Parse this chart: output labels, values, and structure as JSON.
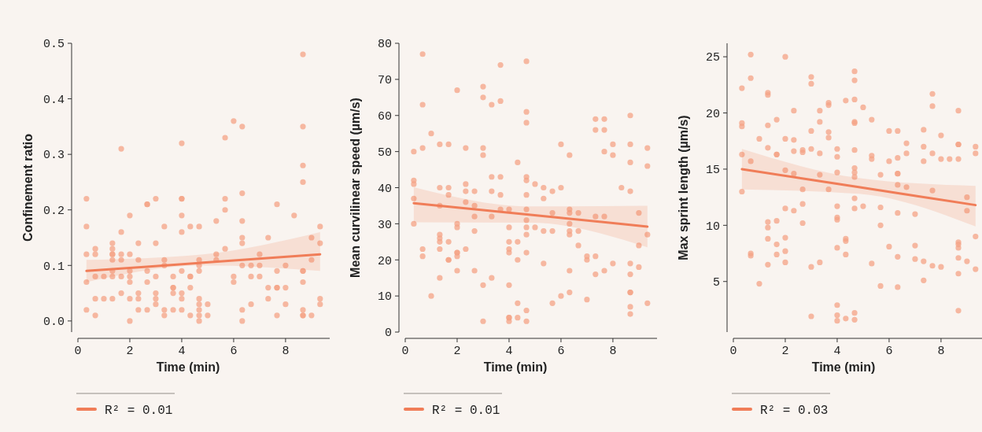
{
  "chart_data": [
    {
      "type": "scatter",
      "xlabel": "Time (min)",
      "ylabel": "Confinement ratio",
      "xlim": [
        0,
        9.7
      ],
      "ylim": [
        -0.02,
        0.5
      ],
      "xticks": [
        0,
        2,
        4,
        6,
        8
      ],
      "yticks": [
        {
          "value": 0,
          "label": "0.0"
        },
        0.1,
        0.2,
        0.3,
        0.4,
        0.5
      ],
      "marker": "circle",
      "legend": "bottom",
      "series": [
        {
          "type": "scatter",
          "color": "#f4a385",
          "x": [
            0.33,
            0.33,
            0.33,
            0.33,
            0.33,
            0.67,
            0.67,
            0.67,
            0.67,
            0.67,
            1,
            1,
            1.33,
            1.33,
            1.33,
            1.33,
            1.33,
            1.33,
            1.33,
            1.33,
            1.67,
            1.67,
            1.67,
            1.67,
            1.67,
            1.67,
            2,
            2,
            2,
            2,
            2,
            2,
            2,
            2.33,
            2.33,
            2.33,
            2.33,
            2.33,
            2.67,
            2.67,
            2.67,
            2.67,
            2.67,
            3,
            3,
            3,
            3,
            3,
            3,
            3.33,
            3.33,
            3.33,
            3.33,
            3.33,
            3.67,
            3.67,
            3.67,
            3.67,
            3.67,
            4,
            4,
            4,
            4,
            4,
            4,
            4,
            4,
            4,
            4.33,
            4.33,
            4.33,
            4.33,
            4.33,
            4.67,
            4.67,
            4.67,
            4.67,
            4.67,
            4.67,
            4.67,
            4.67,
            4.67,
            5,
            5,
            5.33,
            5.33,
            5.33,
            5.67,
            5.67,
            5.67,
            5.67,
            6,
            6,
            6,
            6.33,
            6.33,
            6.33,
            6.33,
            6.33,
            6.33,
            6.33,
            6.33,
            6.67,
            6.67,
            6.67,
            7,
            7,
            7,
            7.33,
            7.33,
            7.33,
            7.67,
            7.67,
            7.67,
            7.67,
            7.67,
            8,
            8,
            8,
            8.33,
            8.67,
            8.67,
            8.67,
            8.67,
            8.67,
            8.67,
            8.67,
            8.67,
            8.67,
            8.67,
            9,
            9,
            9,
            9.33,
            9.33,
            9.33,
            9.33
          ],
          "values": [
            0.22,
            0.17,
            0.12,
            0.07,
            0.02,
            0.13,
            0.12,
            0.08,
            0.04,
            0.01,
            0.08,
            0.04,
            0.14,
            0.13,
            0.12,
            0.12,
            0.11,
            0.09,
            0.08,
            0.04,
            0.31,
            0.16,
            0.12,
            0.11,
            0.08,
            0.05,
            0.19,
            0.12,
            0.09,
            0.08,
            0.07,
            0.04,
            0.0,
            0.14,
            0.11,
            0.05,
            0.04,
            0.02,
            0.21,
            0.21,
            0.09,
            0.07,
            0.02,
            0.22,
            0.14,
            0.08,
            0.05,
            0.04,
            0.03,
            0.17,
            0.11,
            0.1,
            0.02,
            0.01,
            0.08,
            0.06,
            0.06,
            0.05,
            0.02,
            0.32,
            0.22,
            0.22,
            0.19,
            0.16,
            0.09,
            0.05,
            0.04,
            0.02,
            0.17,
            0.08,
            0.08,
            0.06,
            0.01,
            0.17,
            0.11,
            0.1,
            0.09,
            0.04,
            0.03,
            0.02,
            0.01,
            0.0,
            0.03,
            0.01,
            0.18,
            0.12,
            0.11,
            0.33,
            0.22,
            0.2,
            0.13,
            0.36,
            0.08,
            0.07,
            0.35,
            0.23,
            0.18,
            0.15,
            0.14,
            0.1,
            0.02,
            0.0,
            0.1,
            0.08,
            0.03,
            0.12,
            0.1,
            0.08,
            0.15,
            0.06,
            0.04,
            0.21,
            0.09,
            0.06,
            0.06,
            0.01,
            0.1,
            0.06,
            0.03,
            0.19,
            0.48,
            0.35,
            0.28,
            0.25,
            0.09,
            0.09,
            0.07,
            0.02,
            0.01,
            0.01,
            0.15,
            0.11,
            0.01,
            0.17,
            0.14,
            0.04,
            0.03
          ]
        },
        {
          "type": "line",
          "name": "R² = 0.01",
          "color": "#f07d58",
          "x": [
            0.33,
            4.83,
            9.33
          ],
          "marker": "none",
          "values": [
            0.09,
            0.105,
            0.12
          ],
          "lower": [
            0.07,
            0.1,
            0.09
          ],
          "upper": [
            0.11,
            0.12,
            0.16
          ]
        }
      ]
    },
    {
      "type": "scatter",
      "xlabel": "Time (min)",
      "ylabel": "Mean curvilinear speed (µm/s)",
      "xlim": [
        0,
        9.7
      ],
      "ylim": [
        0,
        80
      ],
      "xticks": [
        0,
        2,
        4,
        6,
        8
      ],
      "yticks": [
        0,
        10,
        20,
        30,
        40,
        50,
        60,
        70,
        80
      ],
      "marker": "circle",
      "legend": "bottom",
      "series": [
        {
          "type": "scatter",
          "color": "#f4a385",
          "x": [
            0.33,
            0.33,
            0.33,
            0.33,
            0.33,
            0.67,
            0.67,
            0.67,
            0.67,
            0.67,
            1,
            1,
            1.33,
            1.33,
            1.33,
            1.33,
            1.33,
            1.33,
            1.33,
            1.33,
            1.67,
            1.67,
            1.67,
            1.67,
            1.67,
            1.67,
            2,
            2,
            2,
            2,
            2,
            2,
            2,
            2.33,
            2.33,
            2.33,
            2.33,
            2.33,
            2.67,
            2.67,
            2.67,
            2.67,
            2.67,
            3,
            3,
            3,
            3,
            3,
            3,
            3.33,
            3.33,
            3.33,
            3.33,
            3.33,
            3.67,
            3.67,
            3.67,
            3.67,
            3.67,
            4,
            4,
            4,
            4,
            4,
            4,
            4,
            4,
            4,
            4.33,
            4.33,
            4.33,
            4.33,
            4.33,
            4.67,
            4.67,
            4.67,
            4.67,
            4.67,
            4.67,
            4.67,
            4.67,
            4.67,
            4.67,
            4.67,
            4.67,
            4.67,
            5,
            5,
            5.33,
            5.33,
            5.33,
            5.33,
            5.67,
            5.67,
            5.67,
            5.67,
            6,
            6,
            6,
            6.33,
            6.33,
            6.33,
            6.33,
            6.33,
            6.33,
            6.33,
            6.33,
            6.67,
            6.67,
            6.67,
            7,
            7,
            7,
            7.33,
            7.33,
            7.33,
            7.33,
            7.33,
            7.67,
            7.67,
            7.67,
            7.67,
            7.67,
            8,
            8,
            8,
            8.33,
            8.67,
            8.67,
            8.67,
            8.67,
            8.67,
            8.67,
            8.67,
            8.67,
            8.67,
            8.67,
            9,
            9,
            9,
            9.33,
            9.33,
            9.33,
            9.33
          ],
          "values": [
            50,
            42,
            41,
            37,
            30,
            77,
            63,
            51,
            23,
            21,
            55,
            10,
            52,
            40,
            35,
            27,
            26,
            25,
            23,
            15,
            52,
            40,
            38,
            25,
            20,
            20,
            67,
            30,
            29,
            22,
            22,
            21,
            17,
            51,
            41,
            39,
            36,
            23,
            39,
            35,
            32,
            28,
            17,
            68,
            65,
            51,
            49,
            13,
            3,
            63,
            43,
            39,
            32,
            15,
            74,
            64,
            43,
            38,
            34,
            34,
            29,
            25,
            23,
            22,
            13,
            4,
            4,
            3,
            47,
            25,
            20,
            8,
            4,
            75,
            61,
            58,
            43,
            42,
            38,
            34,
            31,
            29,
            27,
            22,
            6,
            3,
            41,
            29,
            40,
            37,
            28,
            19,
            39,
            33,
            28,
            8,
            52,
            40,
            10,
            49,
            34,
            33,
            30,
            28,
            27,
            17,
            11,
            33,
            28,
            24,
            21,
            20,
            9,
            59,
            56,
            32,
            21,
            16,
            59,
            56,
            50,
            32,
            17,
            52,
            49,
            19,
            40,
            60,
            52,
            47,
            39,
            19,
            16,
            11,
            11,
            7,
            5,
            33,
            24,
            18,
            51,
            46,
            27,
            8
          ]
        },
        {
          "type": "line",
          "name": "R² = 0.01",
          "color": "#f07d58",
          "x": [
            0.33,
            4.83,
            9.33
          ],
          "marker": "none",
          "values": [
            35.7,
            32.5,
            29.2
          ],
          "lower": [
            30.4,
            30.3,
            23.5
          ],
          "upper": [
            40.1,
            34.8,
            35
          ]
        }
      ]
    },
    {
      "type": "scatter",
      "xlabel": "Time (min)",
      "ylabel": "Max sprint length (µm/s)",
      "xlim": [
        0,
        9.7
      ],
      "ylim": [
        0.5,
        26.2
      ],
      "xticks": [
        0,
        2,
        4,
        6,
        8
      ],
      "yticks": [
        5,
        10,
        15,
        20,
        25
      ],
      "marker": "circle",
      "legend": "bottom",
      "series": [
        {
          "type": "scatter",
          "color": "#f4a385",
          "x": [
            0.33,
            0.33,
            0.33,
            0.33,
            0.33,
            0.67,
            0.67,
            0.67,
            0.67,
            0.67,
            1,
            1,
            1.33,
            1.33,
            1.33,
            1.33,
            1.33,
            1.33,
            1.33,
            1.33,
            1.67,
            1.67,
            1.67,
            1.67,
            1.67,
            1.67,
            2,
            2,
            2,
            2,
            2,
            2,
            2,
            2.33,
            2.33,
            2.33,
            2.33,
            2.33,
            2.67,
            2.67,
            2.67,
            2.67,
            2.67,
            3,
            3,
            3,
            3,
            3,
            3,
            3.33,
            3.33,
            3.33,
            3.33,
            3.33,
            3.67,
            3.67,
            3.67,
            3.67,
            3.67,
            4,
            4,
            4,
            4,
            4,
            4,
            4,
            4,
            4,
            4,
            4.33,
            4.33,
            4.33,
            4.33,
            4.33,
            4.67,
            4.67,
            4.67,
            4.67,
            4.67,
            4.67,
            4.67,
            4.67,
            4.67,
            4.67,
            4.67,
            4.67,
            4.67,
            5,
            5,
            5.33,
            5.33,
            5.33,
            5.33,
            5.67,
            5.67,
            5.67,
            5.67,
            6,
            6,
            6,
            6.33,
            6.33,
            6.33,
            6.33,
            6.33,
            6.33,
            6.33,
            6.33,
            6.67,
            6.67,
            6.67,
            7,
            7,
            7,
            7.33,
            7.33,
            7.33,
            7.33,
            7.33,
            7.67,
            7.67,
            7.67,
            7.67,
            7.67,
            8,
            8,
            8,
            8.33,
            8.67,
            8.67,
            8.67,
            8.67,
            8.67,
            8.67,
            8.67,
            8.67,
            8.67,
            8.67,
            9,
            9,
            9,
            9.33,
            9.33,
            9.33,
            9.33
          ],
          "values": [
            22.2,
            19.1,
            18.8,
            16.3,
            13.0,
            25.2,
            23.1,
            15.7,
            7.5,
            7.3,
            17.7,
            4.8,
            21.8,
            21.6,
            18.9,
            16.9,
            10.3,
            9.8,
            8.8,
            6.5,
            19.4,
            16.3,
            16.3,
            10.4,
            8.3,
            7.4,
            25.0,
            17.7,
            14.9,
            11.5,
            8.9,
            7.7,
            6.7,
            20.2,
            17.6,
            16.6,
            14.6,
            11.3,
            16.7,
            16.5,
            13.2,
            11.9,
            10.2,
            23.2,
            22.6,
            18.4,
            16.8,
            6.3,
            1.9,
            20.2,
            19.2,
            16.4,
            14.5,
            6.7,
            20.9,
            20.7,
            18.3,
            17.8,
            13.2,
            16.8,
            16.1,
            14.7,
            11.7,
            10.7,
            10.5,
            8.0,
            2.9,
            2.0,
            1.5,
            21.1,
            8.8,
            8.6,
            7.4,
            1.7,
            23.7,
            22.9,
            21.2,
            19.2,
            19.1,
            16.7,
            15.1,
            14.7,
            14.3,
            12.4,
            11.5,
            2.2,
            1.6,
            20.5,
            11.7,
            19.4,
            16.2,
            15.9,
            6.6,
            14.5,
            11.6,
            10.0,
            4.6,
            18.4,
            15.7,
            8.1,
            18.4,
            16.0,
            14.6,
            14.6,
            13.6,
            11.1,
            7.2,
            4.5,
            17.3,
            16.4,
            13.4,
            11.0,
            8.2,
            7.0,
            18.5,
            17.0,
            15.7,
            6.8,
            5.1,
            21.7,
            20.6,
            16.4,
            13.1,
            6.4,
            18.0,
            15.9,
            6.3,
            15.9,
            20.2,
            17.2,
            17.2,
            15.9,
            8.5,
            8.3,
            8.0,
            7.1,
            5.7,
            2.4,
            12.5,
            11.3,
            6.8,
            17.0,
            16.4,
            9.0,
            6.1
          ]
        },
        {
          "type": "line",
          "name": "R² = 0.03",
          "color": "#f07d58",
          "x": [
            0.33,
            4.83,
            9.33
          ],
          "marker": "none",
          "values": [
            15.0,
            13.4,
            11.8
          ],
          "lower": [
            13.2,
            12.8,
            9.9
          ],
          "upper": [
            16.8,
            14.2,
            13.5
          ]
        }
      ]
    }
  ]
}
